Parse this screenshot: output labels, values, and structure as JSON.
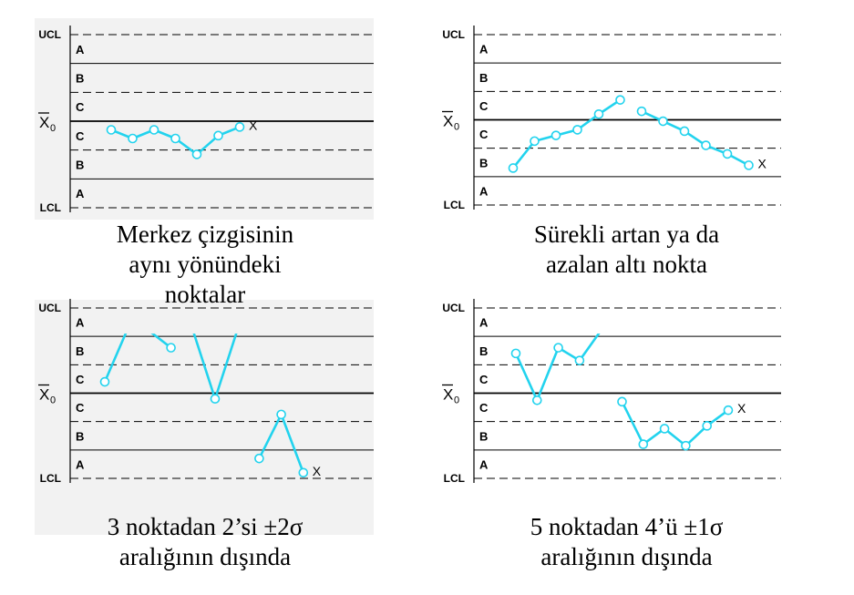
{
  "line_color": "#22d3ee",
  "grid_color": "#000000",
  "shading_color": "#f2f2f2",
  "axis_labels": {
    "ucl": "UCL",
    "lcl": "LCL",
    "center_main": "X",
    "center_sub": "0"
  },
  "violation_marker": "X",
  "panels": [
    {
      "id": "top-left",
      "zones": [
        "A",
        "B",
        "C",
        "C",
        "B",
        "A"
      ],
      "series": [
        [
          [
            1,
            -0.3
          ],
          [
            2,
            -0.6
          ],
          [
            3,
            -0.3
          ],
          [
            4,
            -0.6
          ],
          [
            5,
            -1.15
          ],
          [
            6,
            -0.5
          ],
          [
            7,
            -0.2
          ]
        ]
      ],
      "marker_x": 7,
      "caption": [
        "Merkez çizgisinin",
        "aynı yönündeki",
        "noktalar"
      ]
    },
    {
      "id": "top-right",
      "zones": [
        "A",
        "B",
        "C",
        "C",
        "B",
        "A"
      ],
      "series": [
        [
          [
            1,
            -1.7
          ],
          [
            2,
            -0.75
          ],
          [
            3,
            -0.55
          ],
          [
            4,
            -0.35
          ],
          [
            5,
            0.2
          ],
          [
            6,
            0.7
          ]
        ],
        [
          [
            7,
            0.3
          ],
          [
            8,
            -0.05
          ],
          [
            9,
            -0.4
          ],
          [
            10,
            -0.9
          ],
          [
            11,
            -1.2
          ],
          [
            12,
            -1.6
          ]
        ]
      ],
      "marker_x": 12,
      "caption": [
        "Sürekli artan ya da",
        "azalan altı nokta"
      ]
    },
    {
      "id": "bottom-left",
      "zones": [
        "A",
        "B",
        "C",
        "C",
        "B",
        "A"
      ],
      "series": [
        [
          [
            1,
            0.4
          ],
          [
            2,
            2.2
          ]
        ],
        [
          [
            3,
            2.2
          ],
          [
            4,
            1.6
          ]
        ],
        [
          [
            5,
            2.2
          ],
          [
            6,
            -0.2
          ],
          [
            7,
            2.2
          ]
        ],
        [
          [
            8,
            -2.3
          ],
          [
            9,
            -0.75
          ],
          [
            10,
            -2.8
          ]
        ]
      ],
      "marker_x": 10,
      "caption": [
        "3 noktadan 2’si ±2σ",
        "aralığının dışında"
      ]
    },
    {
      "id": "bottom-right",
      "zones": [
        "A",
        "B",
        "C",
        "C",
        "B",
        "A"
      ],
      "series": [
        [
          [
            1,
            1.4
          ],
          [
            2,
            -0.25
          ],
          [
            3,
            1.6
          ],
          [
            4,
            1.15
          ],
          [
            5,
            2.2
          ]
        ],
        [
          [
            6,
            -0.3
          ],
          [
            7,
            -1.8
          ],
          [
            8,
            -1.25
          ],
          [
            9,
            -1.85
          ],
          [
            10,
            -1.15
          ],
          [
            11,
            -0.6
          ]
        ]
      ],
      "marker_x": 11,
      "caption": [
        "5 noktadan 4’ü ±1σ",
        "aralığının dışında"
      ]
    }
  ]
}
